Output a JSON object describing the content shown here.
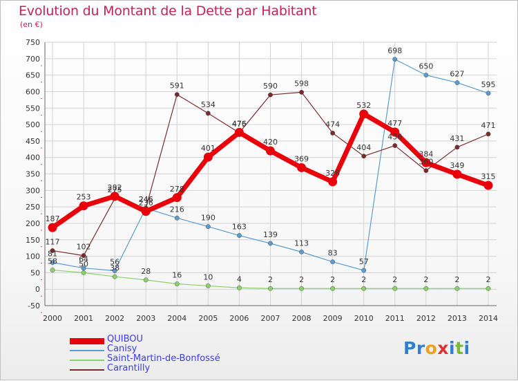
{
  "header": {
    "title": "Evolution du Montant de la Dette par Habitant",
    "subtitle": "(en €)"
  },
  "logo": {
    "text": "Proxiti",
    "colors": [
      "#2f7fd0",
      "#2f7fd0",
      "#f0a020",
      "#e03030",
      "#2f7fd0",
      "#7ab83a",
      "#2f7fd0"
    ]
  },
  "chart_data": {
    "type": "line",
    "x": [
      "2000",
      "2001",
      "2002",
      "2003",
      "2004",
      "2005",
      "2006",
      "2007",
      "2008",
      "2009",
      "2010",
      "2011",
      "2012",
      "2013",
      "2014"
    ],
    "ylim": [
      -50,
      750
    ],
    "yticks": [
      -50,
      0,
      50,
      100,
      150,
      200,
      250,
      300,
      350,
      400,
      450,
      500,
      550,
      600,
      650,
      700,
      750
    ],
    "grid": true,
    "legend_placement": "bottom-left",
    "series": [
      {
        "name": "QUIBOU",
        "color": "#e8000b",
        "values": [
          187,
          253,
          282,
          236,
          278,
          401,
          476,
          420,
          369,
          326,
          532,
          477,
          384,
          349,
          315
        ]
      },
      {
        "name": "Canisy",
        "color": "#5b9bd0",
        "values": [
          81,
          64,
          56,
          246,
          216,
          190,
          163,
          139,
          113,
          83,
          57,
          698,
          650,
          627,
          595
        ]
      },
      {
        "name": "Saint-Martin-de-Bonfossé",
        "color": "#8cd06a",
        "values": [
          58,
          50,
          38,
          28,
          16,
          10,
          4,
          2,
          2,
          2,
          2,
          2,
          2,
          2,
          2
        ]
      },
      {
        "name": "Carantilly",
        "color": "#7a2a2a",
        "values": [
          117,
          102,
          275,
          246,
          591,
          534,
          475,
          590,
          598,
          474,
          404,
          436,
          360,
          431,
          471
        ]
      }
    ]
  }
}
